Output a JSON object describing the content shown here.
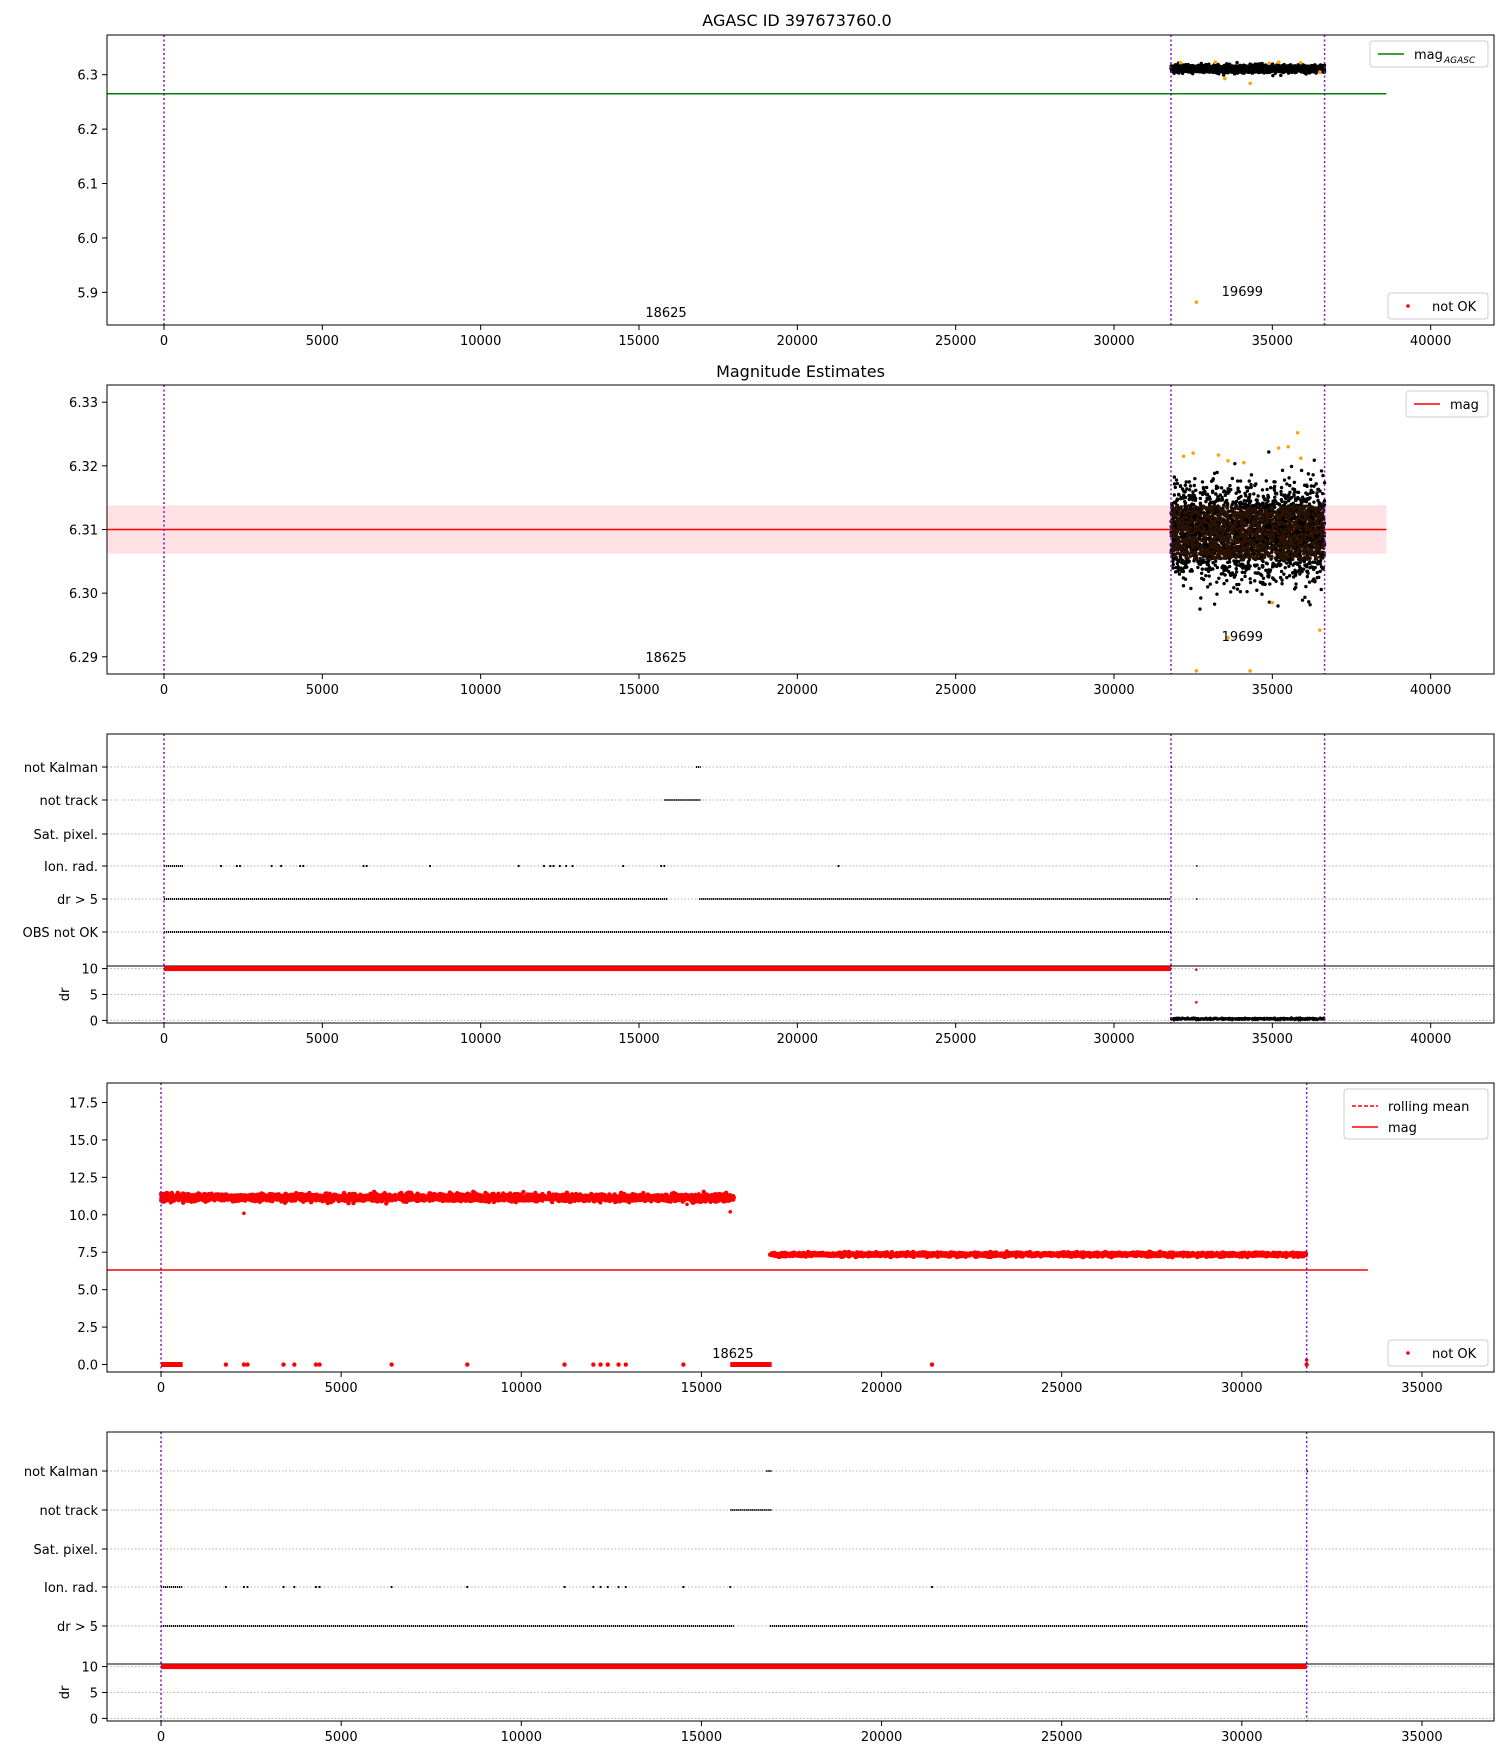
{
  "figure": {
    "title": "AGASC ID 397673760.0"
  },
  "chart_data": [
    {
      "type": "scatter",
      "title": "AGASC ID 397673760.0",
      "xlim": [
        -1800,
        42000
      ],
      "ylim": [
        5.84,
        6.373
      ],
      "xticks": [
        0,
        5000,
        10000,
        15000,
        20000,
        25000,
        30000,
        35000,
        40000
      ],
      "yticks": [
        5.9,
        6.0,
        6.1,
        6.2,
        6.3
      ],
      "ytick_decimals": 1,
      "vlines": [
        0,
        31800,
        36650
      ],
      "hline": {
        "y": 6.265,
        "x_end": 38600,
        "color": "#008000"
      },
      "legend_upper": {
        "label": "mag",
        "sub": "AGASC",
        "color": "#008000"
      },
      "legend_lower": {
        "label": "not OK",
        "color": "#ff0000"
      },
      "annotations": [
        {
          "text": "18625",
          "x": 15200,
          "y": 5.855
        },
        {
          "text": "19699",
          "x": 33400,
          "y": 5.893
        }
      ],
      "cloud": {
        "x0": 31800,
        "x1": 36650,
        "center": 6.311,
        "spread": 0.003,
        "color": "#000000"
      },
      "outliers": [
        {
          "x": 32600,
          "y": 5.882
        },
        {
          "x": 34300,
          "y": 6.284
        },
        {
          "x": 33500,
          "y": 6.293
        },
        {
          "x": 32100,
          "y": 6.322
        },
        {
          "x": 35200,
          "y": 6.323
        },
        {
          "x": 33200,
          "y": 6.323
        },
        {
          "x": 34900,
          "y": 6.321
        },
        {
          "x": 35900,
          "y": 6.322
        },
        {
          "x": 36500,
          "y": 6.305
        }
      ]
    },
    {
      "type": "scatter",
      "title": "Magnitude Estimates",
      "xlim": [
        -1800,
        42000
      ],
      "ylim": [
        6.2873,
        6.3327
      ],
      "xticks": [
        0,
        5000,
        10000,
        15000,
        20000,
        25000,
        30000,
        35000,
        40000
      ],
      "yticks": [
        6.29,
        6.3,
        6.31,
        6.32,
        6.33
      ],
      "ytick_decimals": 2,
      "vlines": [
        0,
        31800,
        36650
      ],
      "hline": {
        "y": 6.31,
        "x_end": 38600,
        "color": "#ff0000"
      },
      "band": {
        "y0": 6.3062,
        "y1": 6.3138,
        "x_end": 38600,
        "color": "#ffcfd6"
      },
      "legend_upper": {
        "label": "mag",
        "color": "#ff0000"
      },
      "annotations": [
        {
          "text": "18625",
          "x": 15200,
          "y": 6.2892
        },
        {
          "text": "19699",
          "x": 33400,
          "y": 6.2925
        }
      ],
      "cloud": {
        "x0": 31800,
        "x1": 36650,
        "center": 6.3095,
        "spread": 0.0035,
        "color": "#000000",
        "core": "#2a1200"
      },
      "outliers": [
        {
          "x": 32600,
          "y": 6.2878
        },
        {
          "x": 34300,
          "y": 6.2878
        },
        {
          "x": 33600,
          "y": 6.293
        },
        {
          "x": 36500,
          "y": 6.2942
        },
        {
          "x": 35000,
          "y": 6.2985
        },
        {
          "x": 35800,
          "y": 6.3252
        },
        {
          "x": 35200,
          "y": 6.3228
        },
        {
          "x": 35500,
          "y": 6.323
        },
        {
          "x": 32500,
          "y": 6.322
        },
        {
          "x": 33300,
          "y": 6.3217
        },
        {
          "x": 33600,
          "y": 6.3208
        },
        {
          "x": 34100,
          "y": 6.3205
        },
        {
          "x": 35900,
          "y": 6.3212
        },
        {
          "x": 32200,
          "y": 6.3215
        }
      ]
    },
    {
      "type": "flags",
      "xlim": [
        -1800,
        42000
      ],
      "xticks": [
        0,
        5000,
        10000,
        15000,
        20000,
        25000,
        30000,
        35000,
        40000
      ],
      "vlines": [
        0,
        31800,
        36650
      ],
      "rows": [
        {
          "label": "not Kalman",
          "segments": [
            [
              16800,
              16950
            ],
            [
              31800,
              31830
            ]
          ]
        },
        {
          "label": "not track",
          "segments": [
            [
              15800,
              16950
            ]
          ]
        },
        {
          "label": "Sat. pixel.",
          "segments": []
        },
        {
          "label": "Ion. rad.",
          "segments": [
            [
              0,
              600
            ],
            [
              32600,
              32620
            ]
          ],
          "dots": [
            1800,
            2300,
            2400,
            3400,
            3700,
            4300,
            4400,
            6300,
            6400,
            8400,
            11200,
            12000,
            12200,
            12300,
            12500,
            12700,
            12900,
            14500,
            15700,
            15800,
            21300
          ]
        },
        {
          "label": "dr > 5",
          "segments": [
            [
              0,
              15900
            ],
            [
              16900,
              31800
            ],
            [
              32600,
              32620
            ]
          ]
        },
        {
          "label": "OBS not OK",
          "segments": [
            [
              0,
              31800
            ]
          ]
        }
      ],
      "dr": {
        "ylim": [
          -0.5,
          10.5
        ],
        "yticks": [
          0,
          5,
          10
        ],
        "ylabel": "dr",
        "high": {
          "x0": 0,
          "x1": 31800,
          "y": 10
        },
        "low": {
          "x0": 31800,
          "x1": 36650,
          "y": 0.3
        },
        "extra": [
          {
            "x": 32600,
            "y": 3.5
          },
          {
            "x": 32600,
            "y": 9.8
          }
        ]
      }
    },
    {
      "type": "scatter",
      "xlim": [
        -1500,
        37000
      ],
      "ylim": [
        -0.5,
        18.8
      ],
      "xticks": [
        0,
        5000,
        10000,
        15000,
        20000,
        25000,
        30000,
        35000
      ],
      "yticks": [
        0.0,
        2.5,
        5.0,
        7.5,
        10.0,
        12.5,
        15.0,
        17.5
      ],
      "ytick_decimals": 1,
      "vlines": [
        0,
        31800
      ],
      "hline": {
        "y": 6.31,
        "x_end": 33500,
        "color": "#ff0000"
      },
      "legend_upper": {
        "entries": [
          {
            "label": "rolling mean",
            "style": "dashed"
          },
          {
            "label": "mag",
            "style": "solid"
          }
        ],
        "color": "#ff0000"
      },
      "legend_lower": {
        "label": "not OK",
        "color": "#ff0000"
      },
      "annotations": [
        {
          "text": "18625",
          "x": 15300,
          "y": 0.45
        }
      ],
      "bands": [
        {
          "x0": 0,
          "x1": 15900,
          "center": 11.15,
          "spread": 0.12
        },
        {
          "x0": 16900,
          "x1": 31800,
          "center": 7.35,
          "spread": 0.06
        }
      ],
      "zeros": {
        "segments": [
          [
            0,
            600
          ],
          [
            15800,
            16950
          ]
        ],
        "dots": [
          1800,
          2300,
          2400,
          3400,
          3700,
          4300,
          4400,
          6400,
          8500,
          11200,
          12000,
          12200,
          12400,
          12700,
          12900,
          14500,
          21400,
          31800
        ]
      },
      "outliers": [
        {
          "x": 2300,
          "y": 10.1
        },
        {
          "x": 12200,
          "y": 10.8
        },
        {
          "x": 14600,
          "y": 10.7
        },
        {
          "x": 15800,
          "y": 10.2
        },
        {
          "x": 31800,
          "y": 0.3
        }
      ]
    },
    {
      "type": "flags",
      "xlim": [
        -1500,
        37000
      ],
      "xticks": [
        0,
        5000,
        10000,
        15000,
        20000,
        25000,
        30000,
        35000
      ],
      "vlines": [
        0,
        31800
      ],
      "rows": [
        {
          "label": "not Kalman",
          "segments": [
            [
              16800,
              16950
            ],
            [
              31800,
              31830
            ]
          ]
        },
        {
          "label": "not track",
          "segments": [
            [
              15800,
              16950
            ]
          ]
        },
        {
          "label": "Sat. pixel.",
          "segments": []
        },
        {
          "label": "Ion. rad.",
          "segments": [
            [
              0,
              600
            ]
          ],
          "dots": [
            1800,
            2300,
            2400,
            3400,
            3700,
            4300,
            4400,
            6400,
            8500,
            11200,
            12000,
            12200,
            12400,
            12700,
            12900,
            14500,
            15800,
            21400
          ]
        },
        {
          "label": "dr > 5",
          "segments": [
            [
              0,
              15900
            ],
            [
              16900,
              31800
            ]
          ]
        }
      ],
      "dr": {
        "ylim": [
          -0.5,
          10.5
        ],
        "yticks": [
          0,
          5,
          10
        ],
        "ylabel": "dr",
        "high": {
          "x0": 0,
          "x1": 31800,
          "y": 10
        }
      }
    }
  ]
}
